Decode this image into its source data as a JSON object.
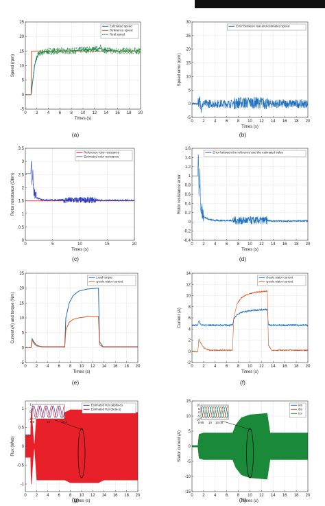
{
  "colors": {
    "blue": "#1f6fbf",
    "orange": "#d95319",
    "green": "#1a8a3a",
    "red": "#e02020",
    "estimated_flux": "#e8202a",
    "ias": "#1f6fbf",
    "ibs": "#d95319",
    "ics": "#1a8a3a",
    "grid": "#e6e6e6",
    "axis": "#333333"
  },
  "chart_data": [
    {
      "id": "a",
      "caption": "(a)",
      "type": "line",
      "xlabel": "Times (s)",
      "ylabel": "Speed (rpm)",
      "xlim": [
        0,
        20
      ],
      "ylim": [
        -5,
        25
      ],
      "xticks": [
        0,
        2,
        4,
        6,
        8,
        10,
        12,
        14,
        16,
        18,
        20
      ],
      "yticks": [
        -5,
        0,
        5,
        10,
        15,
        20,
        25
      ],
      "grid": true,
      "legend_position": "top-right",
      "series": [
        {
          "name": "Estimated speed",
          "color": "#1f6fbf",
          "style": "solid",
          "x": [
            0,
            1,
            1.3,
            1.6,
            2,
            2.5,
            3,
            4,
            6,
            7,
            8,
            9,
            10,
            12,
            13,
            13.5,
            14,
            16,
            18,
            20
          ],
          "y": [
            0,
            0,
            5,
            10,
            13,
            14.3,
            14.6,
            14.9,
            15,
            15,
            15,
            15.2,
            15.4,
            15.5,
            16,
            15.6,
            15.2,
            15,
            15,
            15
          ]
        },
        {
          "name": "Reference speed",
          "color": "#d95319",
          "style": "solid",
          "x": [
            0,
            1,
            1,
            20
          ],
          "y": [
            0,
            0,
            15,
            15
          ]
        },
        {
          "name": "Real speed",
          "color": "#1a8a3a",
          "style": "dashed",
          "x": [
            0,
            1,
            1.3,
            1.6,
            2,
            2.5,
            3,
            4,
            6,
            7,
            8,
            9,
            10,
            12,
            13,
            13.5,
            14,
            16,
            18,
            20
          ],
          "y": [
            0,
            0,
            5,
            10,
            13,
            14.3,
            14.6,
            14.9,
            15,
            15,
            15,
            15.2,
            15.4,
            15.5,
            16,
            15.6,
            15.2,
            15,
            15,
            15
          ],
          "ripple_amplitude": 1.2,
          "ripple_segments": [
            [
              1.5,
              20,
              1.2
            ]
          ]
        }
      ]
    },
    {
      "id": "b",
      "caption": "(b)",
      "type": "line",
      "xlabel": "Times (s)",
      "ylabel": "Speed error (rpm)",
      "xlim": [
        0,
        20
      ],
      "ylim": [
        -5,
        30
      ],
      "xticks": [
        0,
        2,
        4,
        6,
        8,
        10,
        12,
        14,
        16,
        18,
        20
      ],
      "yticks": [
        -5,
        0,
        5,
        10,
        15,
        20,
        25,
        30
      ],
      "grid": true,
      "legend_position": "top-right",
      "series": [
        {
          "name": "Error between real and estimated speed",
          "color": "#1f6fbf",
          "style": "solid",
          "x": [
            0,
            1,
            1.2,
            1.5,
            2,
            7,
            8,
            12,
            13,
            14,
            20
          ],
          "y": [
            0,
            0,
            1.5,
            -1,
            0,
            0,
            0.4,
            0.4,
            0,
            0,
            0
          ],
          "ripple_segments": [
            [
              0,
              1,
              0.4
            ],
            [
              1,
              1.6,
              2.5
            ],
            [
              1.6,
              7,
              1.5
            ],
            [
              7,
              13,
              2.2
            ],
            [
              13,
              20,
              1.6
            ]
          ]
        }
      ]
    },
    {
      "id": "c",
      "caption": "(c)",
      "type": "line",
      "xlabel": "Times (s)",
      "ylabel": "Rotor resistance (Ohm)",
      "xlim": [
        0,
        20
      ],
      "ylim": [
        0,
        3.5
      ],
      "xticks": [
        0,
        5,
        10,
        15,
        20
      ],
      "yticks": [
        0,
        0.5,
        1,
        1.5,
        2,
        2.5,
        3,
        3.5
      ],
      "grid": true,
      "legend_position": "top-right",
      "series": [
        {
          "name": "Reference rotor resistance",
          "color": "#e02020",
          "style": "solid",
          "x": [
            0,
            20
          ],
          "y": [
            1.5,
            1.5
          ]
        },
        {
          "name": "Estimated rotor resistance",
          "color": "#2b3fbf",
          "style": "solid",
          "x": [
            0,
            1,
            1.1,
            1.2,
            1.35,
            1.5,
            1.8,
            2.2,
            3,
            4,
            7,
            13,
            14,
            20
          ],
          "y": [
            2.55,
            2.55,
            3.1,
            2.2,
            2.6,
            1.9,
            1.7,
            1.6,
            1.55,
            1.53,
            1.53,
            1.53,
            1.52,
            1.52
          ],
          "ripple_segments": [
            [
              1.2,
              2,
              0.2
            ],
            [
              2,
              7,
              0.03
            ],
            [
              7,
              13,
              0.12
            ],
            [
              13,
              20,
              0.03
            ]
          ]
        }
      ]
    },
    {
      "id": "d",
      "caption": "(d)",
      "type": "line",
      "xlabel": "Times (s)",
      "ylabel": "Rotor resistance error",
      "xlim": [
        0,
        20
      ],
      "ylim": [
        -0.4,
        1.6
      ],
      "xticks": [
        0,
        2,
        4,
        6,
        8,
        10,
        12,
        14,
        16,
        18,
        20
      ],
      "yticks": [
        -0.4,
        -0.2,
        0,
        0.2,
        0.4,
        0.6,
        0.8,
        1,
        1.2,
        1.4,
        1.6
      ],
      "grid": true,
      "legend_position": "top-right",
      "series": [
        {
          "name": "Error between the reference and the estimated value",
          "color": "#1f6fbf",
          "style": "solid",
          "x": [
            0,
            1,
            1.1,
            1.2,
            1.35,
            1.5,
            1.8,
            2.2,
            3,
            4,
            7,
            13,
            14,
            20
          ],
          "y": [
            1.0,
            1.0,
            1.55,
            0.6,
            1.05,
            0.35,
            0.2,
            0.1,
            0.05,
            0.03,
            0.03,
            0.03,
            0.02,
            0.02
          ],
          "ripple_segments": [
            [
              1.2,
              2,
              0.15
            ],
            [
              2,
              7,
              0.02
            ],
            [
              7,
              13,
              0.09
            ],
            [
              13,
              20,
              0.02
            ]
          ]
        }
      ]
    },
    {
      "id": "e",
      "caption": "(e)",
      "type": "line",
      "xlabel": "Times (s)",
      "ylabel": "Current (A) and torque (Nm)",
      "xlim": [
        0,
        20
      ],
      "ylim": [
        -5,
        25
      ],
      "xticks": [
        0,
        2,
        4,
        6,
        8,
        10,
        12,
        14,
        16,
        18,
        20
      ],
      "yticks": [
        -5,
        0,
        5,
        10,
        15,
        20,
        25
      ],
      "grid": true,
      "legend_position": "top-right",
      "series": [
        {
          "name": "Load torque",
          "color": "#1f6fbf",
          "style": "solid",
          "x": [
            0,
            1,
            1.2,
            1.5,
            2,
            2.5,
            3,
            7,
            7.2,
            7.8,
            8.5,
            9.5,
            11,
            13,
            13.2,
            13.8,
            20
          ],
          "y": [
            0,
            0,
            3,
            2,
            0.8,
            0.5,
            0.3,
            0.3,
            10,
            15,
            17.5,
            19,
            19.7,
            20,
            2,
            0.3,
            0.3
          ]
        },
        {
          "name": "q-axis stator current",
          "color": "#d95319",
          "style": "solid",
          "x": [
            0,
            1,
            1.2,
            1.5,
            2,
            2.5,
            3,
            7,
            7.2,
            7.8,
            8.5,
            9.5,
            11,
            13,
            13.2,
            13.8,
            20
          ],
          "y": [
            0,
            0,
            2.5,
            1.5,
            0.6,
            0.4,
            0.2,
            0.2,
            6,
            8.5,
            9.5,
            10,
            10.4,
            10.5,
            1,
            0.2,
            0.2
          ]
        }
      ]
    },
    {
      "id": "f",
      "caption": "(f)",
      "type": "line",
      "xlabel": "Times (s)",
      "ylabel": "Current (A)",
      "xlim": [
        0,
        20
      ],
      "ylim": [
        -2,
        14
      ],
      "xticks": [
        0,
        2,
        4,
        6,
        8,
        10,
        12,
        14,
        16,
        18,
        20
      ],
      "yticks": [
        -2,
        0,
        2,
        4,
        6,
        8,
        10,
        12,
        14
      ],
      "grid": true,
      "legend_position": "top-right",
      "series": [
        {
          "name": "d-axis stator current",
          "color": "#1f6fbf",
          "style": "solid",
          "x": [
            0,
            1,
            1.2,
            1.5,
            2,
            7,
            7.2,
            7.8,
            8.5,
            9.5,
            11,
            13,
            13.2,
            13.8,
            20
          ],
          "y": [
            4.7,
            4.7,
            5.5,
            4.8,
            4.7,
            4.7,
            5.8,
            6.6,
            7,
            7.2,
            7.4,
            7.5,
            4.8,
            4.7,
            4.7
          ],
          "ripple_segments": [
            [
              0,
              20,
              0.15
            ]
          ]
        },
        {
          "name": "q-axis stator current",
          "color": "#d95319",
          "style": "solid",
          "x": [
            0,
            1,
            1.2,
            1.5,
            2,
            2.5,
            3,
            7,
            7.2,
            7.8,
            8.5,
            9.5,
            11,
            13,
            13.2,
            13.8,
            20
          ],
          "y": [
            0,
            0,
            2.2,
            1.5,
            0.7,
            0.4,
            0.2,
            0.2,
            6,
            8.5,
            9.6,
            10.2,
            10.6,
            10.8,
            1,
            0.2,
            0.2
          ],
          "ripple_segments": [
            [
              0,
              20,
              0.1
            ]
          ]
        }
      ]
    },
    {
      "id": "g",
      "caption": "(g)",
      "type": "line",
      "xlabel": "Times (s)",
      "ylabel": "Flux (Web)",
      "xlim": [
        0,
        20
      ],
      "ylim": [
        -1.2,
        1.2
      ],
      "xticks": [
        0,
        2,
        4,
        6,
        8,
        10,
        12,
        14,
        16,
        18,
        20
      ],
      "yticks": [
        -1,
        -0.5,
        0,
        0.5,
        1
      ],
      "grid": true,
      "legend_position": "top-right",
      "series": [
        {
          "name": "Estimated flux (alpha-s)",
          "color": "#2b3fbf",
          "style": "solid",
          "x": [],
          "y": []
        },
        {
          "name": "Estimated flux (beta-s)",
          "color": "#e8202a",
          "style": "solid",
          "envelope_x": [
            0,
            0.9,
            1,
            1.1,
            2,
            7,
            8,
            13,
            14,
            20
          ],
          "envelope_y": [
            0.3,
            0.3,
            1.0,
            -1.0,
            0.9,
            0.9,
            0.97,
            0.97,
            0.9,
            0.9
          ]
        }
      ],
      "inset": {
        "xlim": [
          9.9,
          10.1
        ],
        "ylim": [
          -1,
          1
        ],
        "xticks": [
          9.9,
          10,
          10.1
        ],
        "yticks": [
          -1,
          0,
          1
        ],
        "periods": 5
      }
    },
    {
      "id": "h",
      "caption": "(h)",
      "type": "line",
      "xlabel": "Times (s)",
      "ylabel": "Stator current (A)",
      "xlim": [
        0,
        20
      ],
      "ylim": [
        -15,
        15
      ],
      "xticks": [
        0,
        2,
        4,
        6,
        8,
        10,
        12,
        14,
        16,
        18,
        20
      ],
      "yticks": [
        -15,
        -10,
        -5,
        0,
        5,
        10,
        15
      ],
      "grid": true,
      "legend_position": "top-right",
      "series": [
        {
          "name": "ias",
          "color": "#1f6fbf",
          "style": "solid"
        },
        {
          "name": "ibs",
          "color": "#d95319",
          "style": "solid"
        },
        {
          "name": "ics",
          "color": "#1a8a3a",
          "style": "solid",
          "envelope_x": [
            0,
            1,
            1.2,
            2,
            7,
            7.5,
            8.5,
            10,
            12,
            13,
            13.5,
            20
          ],
          "envelope_y": [
            0.3,
            0.3,
            4,
            4.5,
            4.5,
            7,
            9.5,
            10.5,
            10.8,
            11,
            4.5,
            4.5
          ]
        }
      ],
      "inset": {
        "xlim": [
          9.95,
          10.1
        ],
        "ylim": [
          -10,
          10
        ],
        "xticks": [
          9.95,
          10,
          10.05
        ],
        "yticks": [
          -10,
          -5,
          0,
          5,
          10
        ],
        "periods": 4
      }
    }
  ]
}
